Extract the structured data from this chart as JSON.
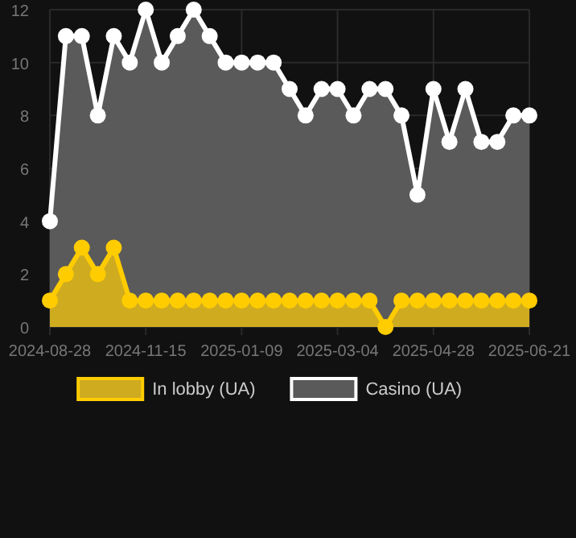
{
  "chart_data": {
    "type": "area",
    "categories": [
      "2024-08-28",
      null,
      null,
      null,
      null,
      null,
      "2024-11-15",
      null,
      null,
      null,
      null,
      null,
      "2025-01-09",
      null,
      null,
      null,
      null,
      null,
      "2025-03-04",
      null,
      null,
      null,
      null,
      null,
      "2025-04-28",
      null,
      null,
      null,
      null,
      null,
      "2025-06-21"
    ],
    "series": [
      {
        "name": "In lobby (UA)",
        "color": "#ffcc00",
        "values": [
          1,
          2,
          3,
          2,
          3,
          1,
          1,
          1,
          1,
          1,
          1,
          1,
          1,
          1,
          1,
          1,
          1,
          1,
          1,
          1,
          1,
          0,
          1,
          1,
          1,
          1,
          1,
          1,
          1,
          1,
          1
        ]
      },
      {
        "name": "Casino (UA)",
        "color": "#ffffff",
        "values": [
          4,
          11,
          11,
          8,
          11,
          10,
          12,
          10,
          11,
          12,
          11,
          10,
          10,
          10,
          10,
          9,
          8,
          9,
          9,
          8,
          9,
          9,
          8,
          5,
          9,
          7,
          9,
          7,
          7,
          8,
          8
        ]
      }
    ],
    "ylim": [
      0,
      12
    ],
    "yticks": [
      0,
      2,
      4,
      6,
      8,
      10,
      12
    ],
    "grid": true,
    "legend": "bottom",
    "marker": "circle"
  }
}
